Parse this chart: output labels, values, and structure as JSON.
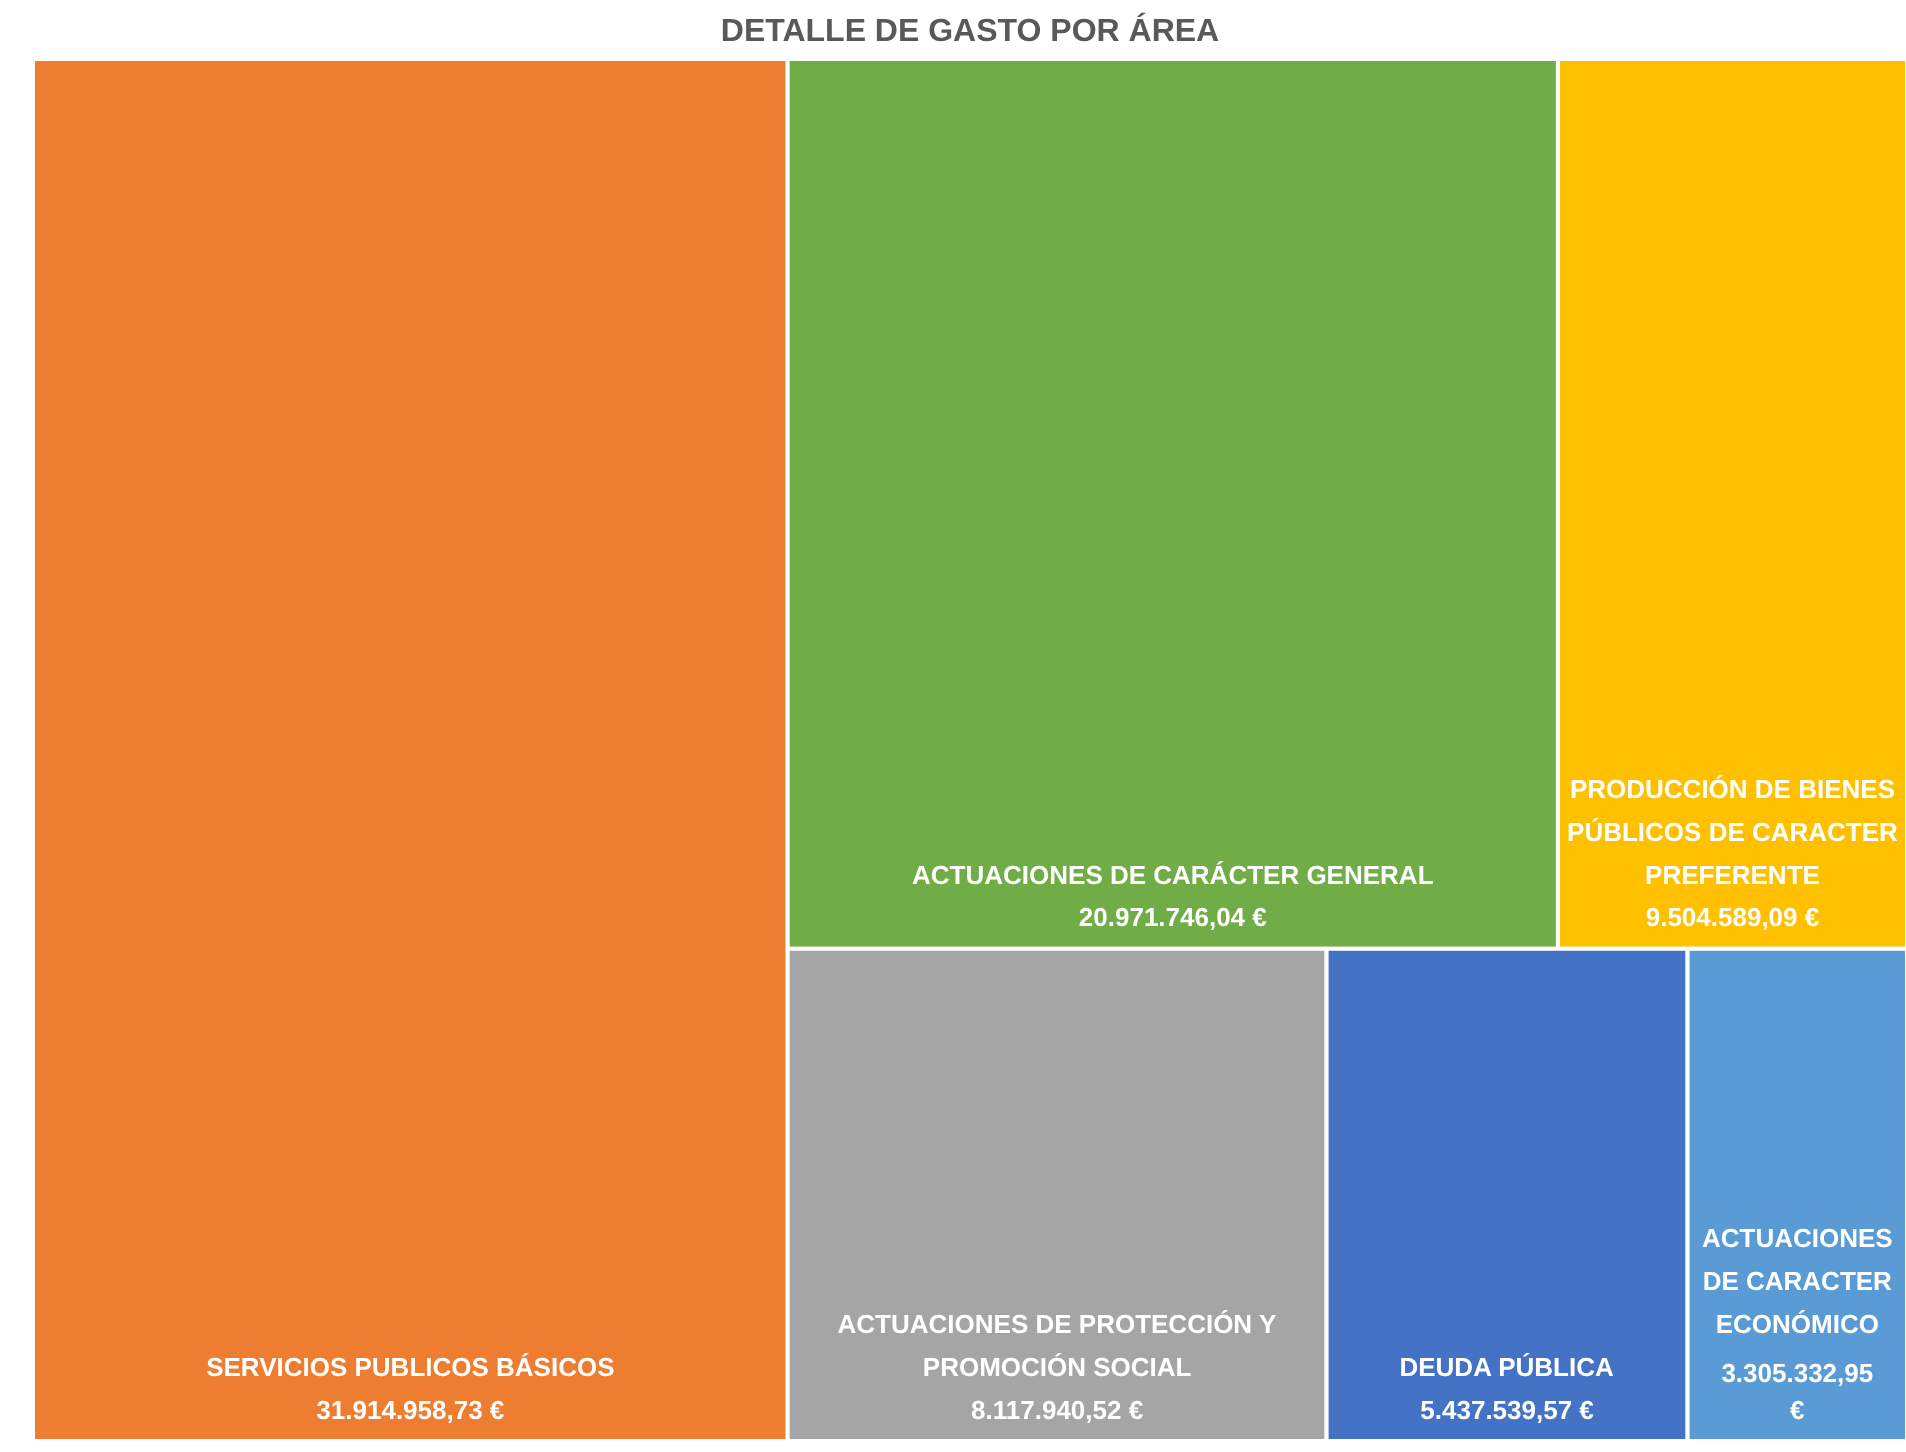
{
  "chart_data": {
    "type": "other",
    "title": "DETALLE DE GASTO POR ÁREA",
    "categories": [
      "SERVICIOS PUBLICOS BÁSICOS",
      "ACTUACIONES DE CARÁCTER GENERAL",
      "PRODUCCIÓN DE BIENES PÚBLICOS DE CARACTER PREFERENTE",
      "ACTUACIONES DE PROTECCIÓN Y PROMOCIÓN SOCIAL",
      "DEUDA PÚBLICA",
      "ACTUACIONES DE CARACTER ECONÓMICO"
    ],
    "values": [
      31914958.73,
      20971746.04,
      9504589.09,
      8117940.52,
      5437539.57,
      3305332.95
    ],
    "value_labels": [
      "31.914.958,73 €",
      "20.971.746,04 €",
      "9.504.589,09 €",
      "8.117.940,52 €",
      "5.437.539,57 €",
      "3.305.332,95 €"
    ],
    "colors": [
      "#ed7d31",
      "#70ad47",
      "#ffc000",
      "#a5a5a5",
      "#4472c4",
      "#5b9bd5"
    ]
  }
}
